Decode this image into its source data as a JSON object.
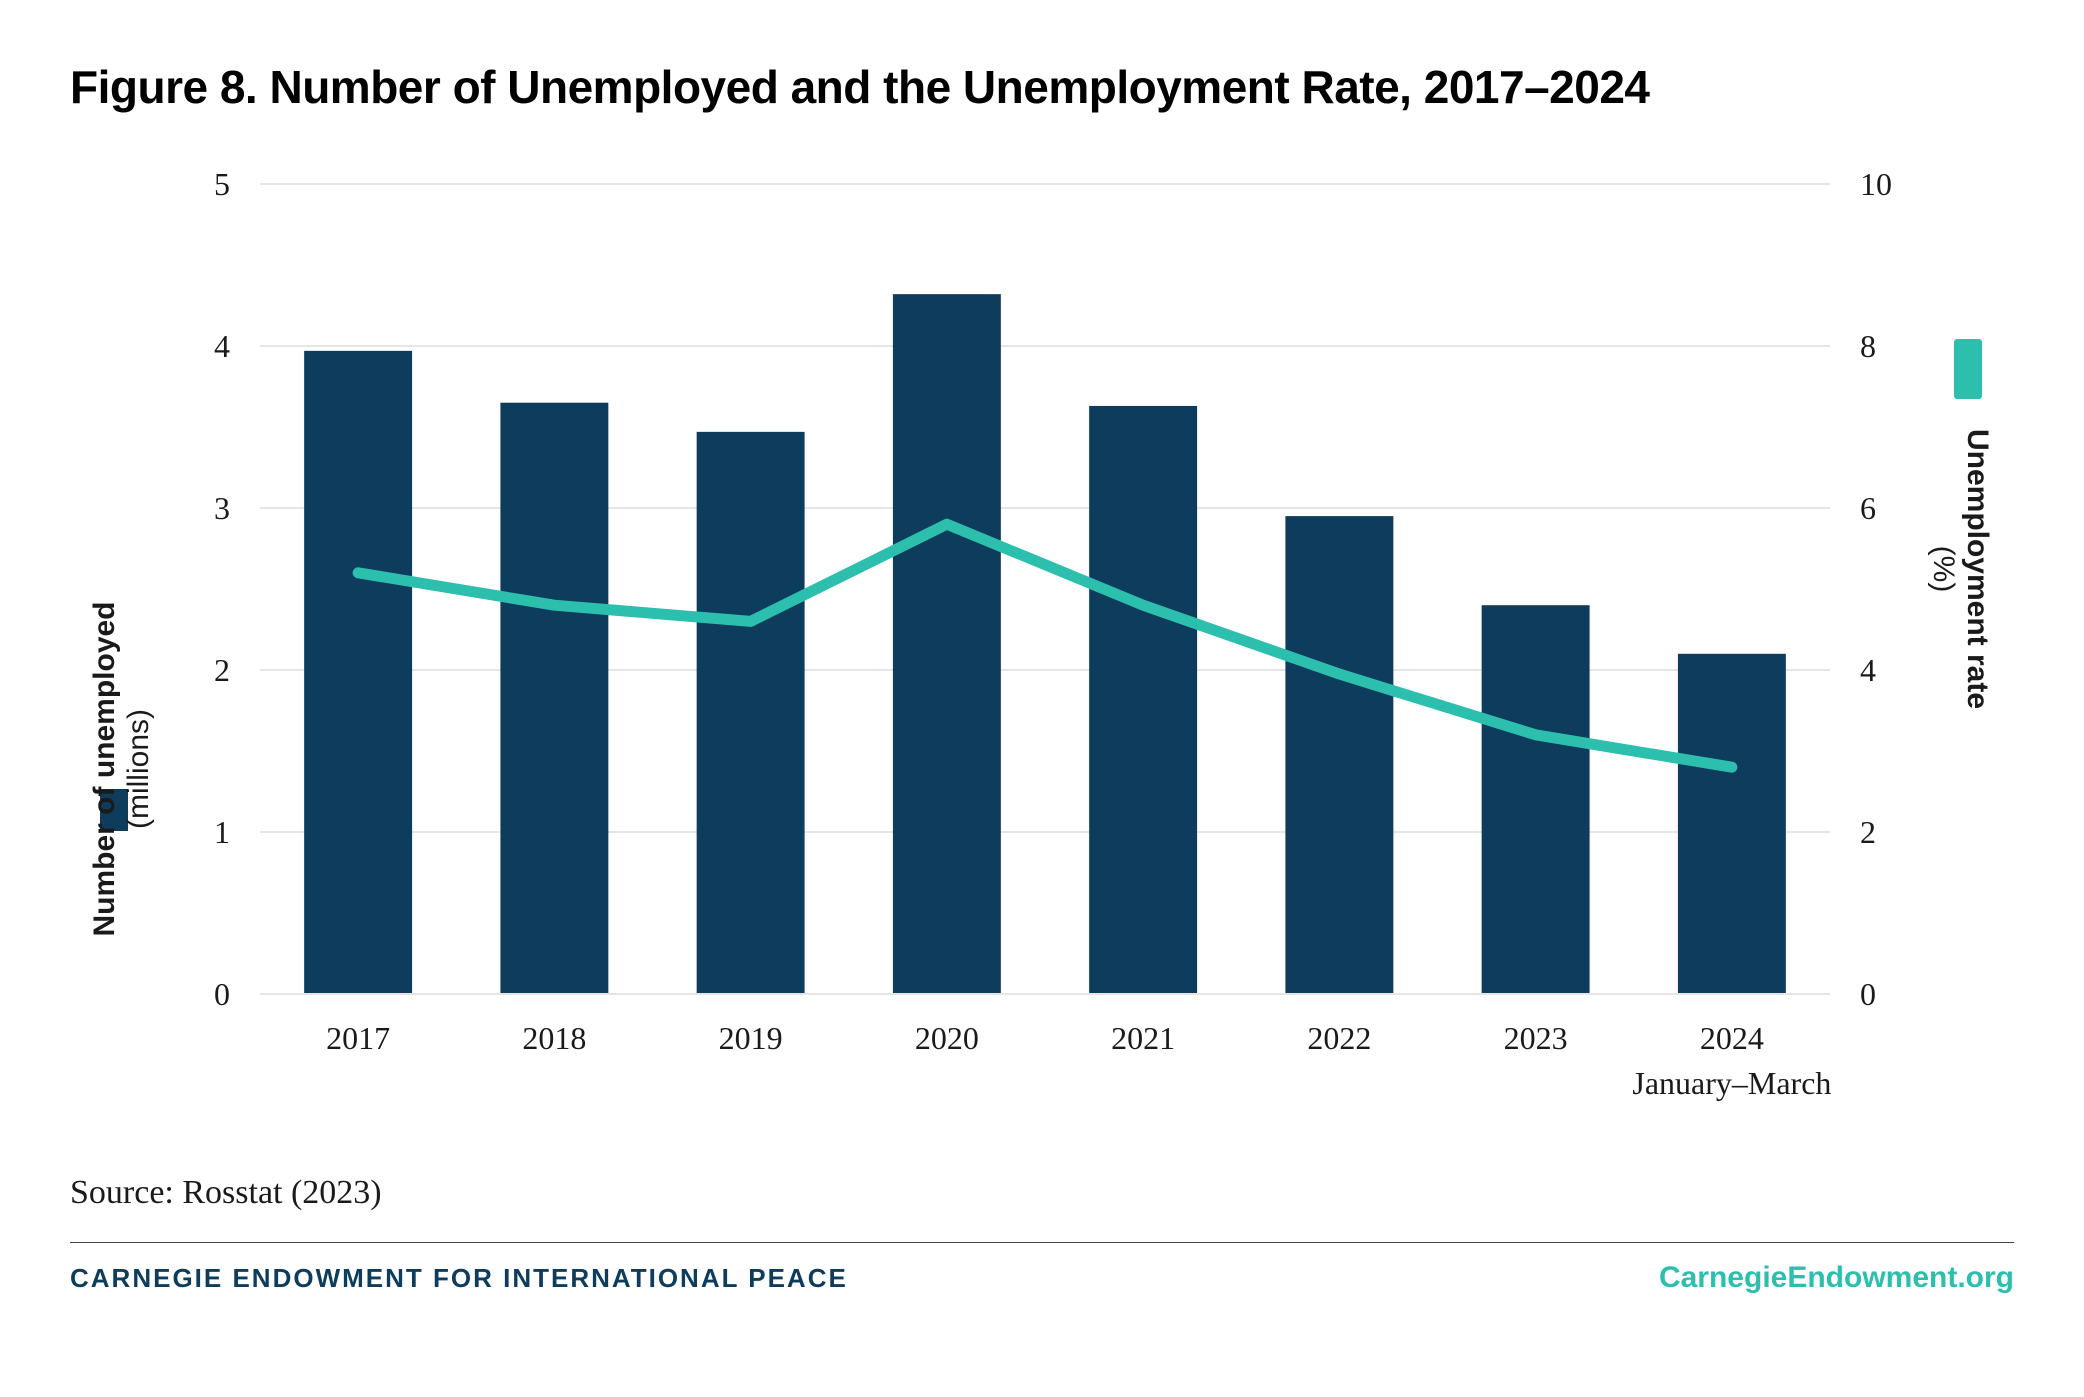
{
  "title": "Figure 8. Number of Unemployed and the Unemployment Rate, 2017–2024",
  "source": "Source: Rosstat (2023)",
  "footer_org": "CARNEGIE ENDOWMENT FOR INTERNATIONAL PEACE",
  "footer_url": "CarnegieEndowment.org",
  "chart": {
    "type": "bar+line",
    "background_color": "#ffffff",
    "grid_color": "#e5e5e5",
    "title_fontsize": 46,
    "axis_tick_fontsize": 32,
    "axis_label_fontsize": 30,
    "categories": [
      "2017",
      "2018",
      "2019",
      "2020",
      "2021",
      "2022",
      "2023",
      "2024"
    ],
    "category_sub": [
      "",
      "",
      "",
      "",
      "",
      "",
      "",
      "January–March"
    ],
    "left_axis": {
      "title_line1": "Number of unemployed",
      "title_line2": "(millions)",
      "min": 0,
      "max": 5,
      "tick_step": 1,
      "ticks": [
        "0",
        "1",
        "2",
        "3",
        "4",
        "5"
      ]
    },
    "right_axis": {
      "title_line1": "Unemployment rate",
      "title_line2": "(%)",
      "min": 0,
      "max": 10,
      "tick_step": 2,
      "ticks": [
        "0",
        "2",
        "4",
        "6",
        "8",
        "10"
      ]
    },
    "bars": {
      "label": "Number of unemployed",
      "color": "#0d3c5c",
      "values": [
        3.97,
        3.65,
        3.47,
        4.32,
        3.63,
        2.95,
        2.4,
        2.1
      ],
      "bar_width_ratio": 0.55
    },
    "line": {
      "label": "Unemployment rate",
      "color": "#2cbfad",
      "stroke_width": 11,
      "values": [
        5.2,
        4.8,
        4.6,
        5.8,
        4.8,
        3.95,
        3.2,
        2.8
      ]
    },
    "legend_swatch": {
      "bar": "#0d3c5c",
      "line": "#2cbfad"
    },
    "footer_org_color": "#0d3c5c",
    "footer_url_color": "#2cbfad"
  }
}
